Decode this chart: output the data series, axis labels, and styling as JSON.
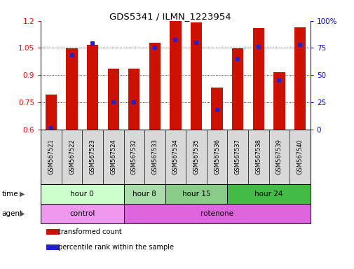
{
  "title": "GDS5341 / ILMN_1223954",
  "samples": [
    "GSM567521",
    "GSM567522",
    "GSM567523",
    "GSM567524",
    "GSM567532",
    "GSM567533",
    "GSM567534",
    "GSM567535",
    "GSM567536",
    "GSM567537",
    "GSM567538",
    "GSM567539",
    "GSM567540"
  ],
  "transformed_count": [
    0.79,
    1.047,
    1.065,
    0.935,
    0.935,
    1.08,
    1.2,
    1.19,
    0.83,
    1.047,
    1.16,
    0.915,
    1.165
  ],
  "percentile_rank": [
    1,
    68,
    79,
    25,
    25,
    75,
    82,
    80,
    18,
    65,
    76,
    45,
    78
  ],
  "ylim_left": [
    0.6,
    1.2
  ],
  "ylim_right": [
    0,
    100
  ],
  "yticks_left": [
    0.6,
    0.75,
    0.9,
    1.05,
    1.2
  ],
  "yticks_right": [
    0,
    25,
    50,
    75,
    100
  ],
  "bar_color": "#cc1100",
  "dot_color": "#2222cc",
  "time_groups": [
    {
      "label": "hour 0",
      "start": 0,
      "end": 4
    },
    {
      "label": "hour 8",
      "start": 4,
      "end": 6
    },
    {
      "label": "hour 15",
      "start": 6,
      "end": 9
    },
    {
      "label": "hour 24",
      "start": 9,
      "end": 13
    }
  ],
  "time_colors": [
    "#ccffcc",
    "#aaddaa",
    "#88cc88",
    "#44bb44"
  ],
  "agent_groups": [
    {
      "label": "control",
      "start": 0,
      "end": 4
    },
    {
      "label": "rotenone",
      "start": 4,
      "end": 13
    }
  ],
  "agent_colors": [
    "#ee99ee",
    "#dd66dd"
  ],
  "legend_items": [
    {
      "label": "transformed count",
      "color": "#cc1100"
    },
    {
      "label": "percentile rank within the sample",
      "color": "#2222cc"
    }
  ],
  "bar_width": 0.55
}
